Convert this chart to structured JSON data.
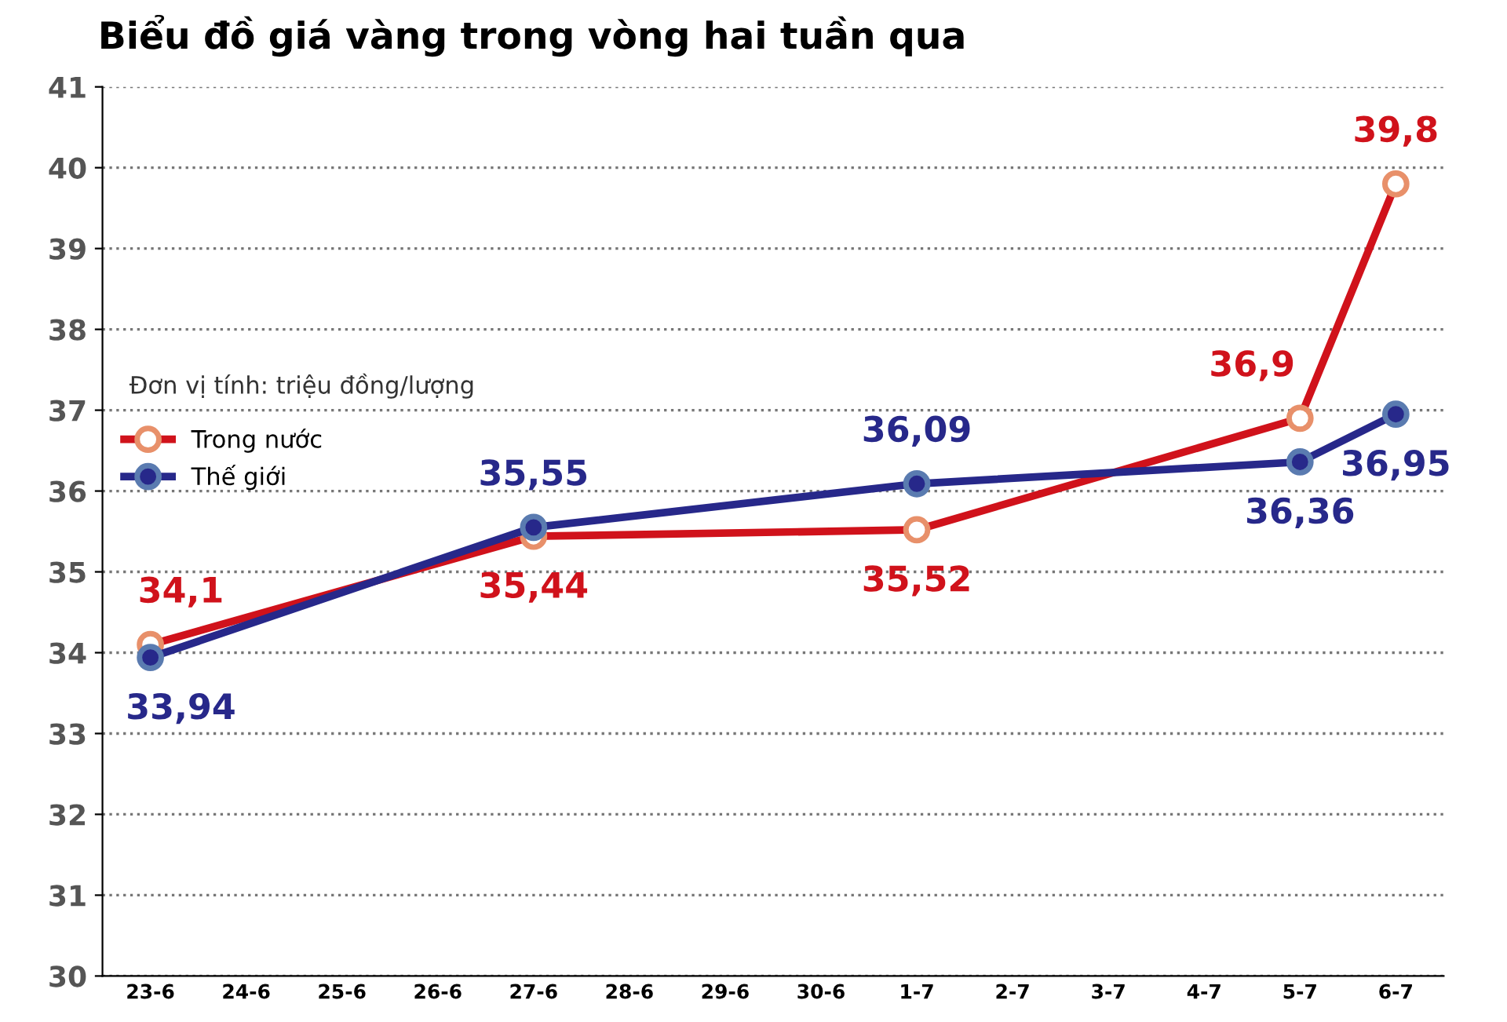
{
  "chart_data": {
    "type": "line",
    "title": "Biểu đồ giá vàng trong vòng hai tuần qua",
    "annotations": [
      "Đơn vị tính: triệu đồng/lượng"
    ],
    "categories": [
      "23-6",
      "24-6",
      "25-6",
      "26-6",
      "27-6",
      "28-6",
      "29-6",
      "30-6",
      "1-7",
      "2-7",
      "3-7",
      "4-7",
      "5-7",
      "6-7"
    ],
    "series": [
      {
        "name": "Trong nước",
        "color": "#d0121b",
        "values": [
          34.1,
          null,
          null,
          null,
          35.44,
          null,
          null,
          null,
          35.52,
          null,
          null,
          null,
          36.9,
          39.8
        ],
        "value_labels": [
          "34,1",
          null,
          null,
          null,
          "35,44",
          null,
          null,
          null,
          "35,52",
          null,
          null,
          null,
          "36,9",
          "39,8"
        ]
      },
      {
        "name": "Thế giới",
        "color": "#27288a",
        "values": [
          33.94,
          null,
          null,
          null,
          35.55,
          null,
          null,
          null,
          36.09,
          null,
          null,
          null,
          36.36,
          36.95
        ],
        "value_labels": [
          "33,94",
          null,
          null,
          null,
          "35,55",
          null,
          null,
          null,
          "36,09",
          null,
          null,
          null,
          "36,36",
          "36,95"
        ]
      }
    ],
    "ylim": [
      30,
      41
    ],
    "yticks": [
      30,
      31,
      32,
      33,
      34,
      35,
      36,
      37,
      38,
      39,
      40,
      41
    ],
    "grid": "y",
    "legend": "top left",
    "marker": "circle",
    "line_style": "solid"
  }
}
